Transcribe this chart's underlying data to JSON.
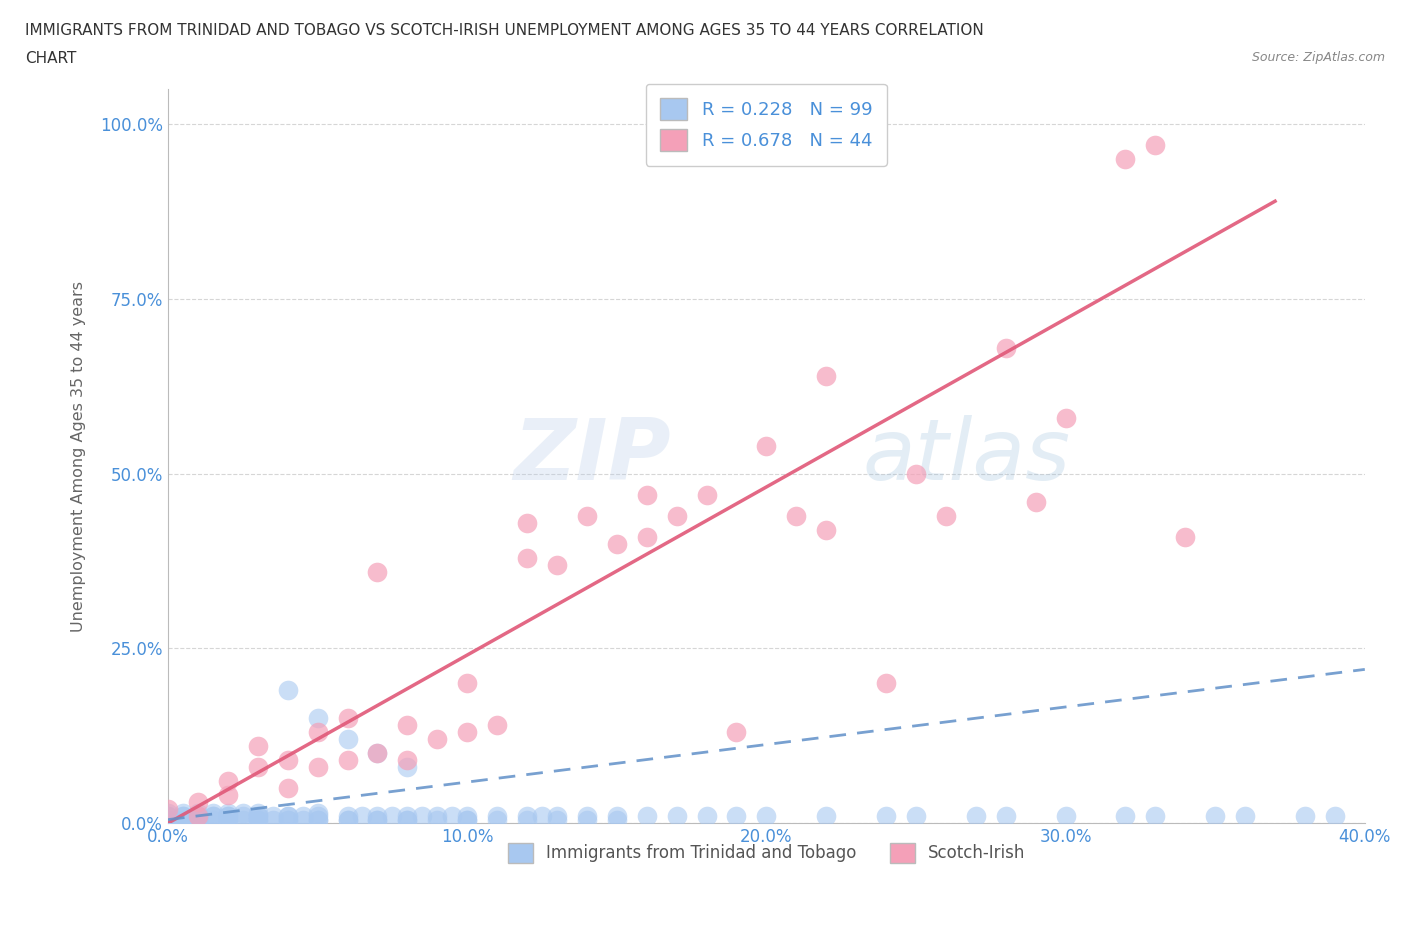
{
  "title_line1": "IMMIGRANTS FROM TRINIDAD AND TOBAGO VS SCOTCH-IRISH UNEMPLOYMENT AMONG AGES 35 TO 44 YEARS CORRELATION",
  "title_line2": "CHART",
  "source": "Source: ZipAtlas.com",
  "ylabel": "Unemployment Among Ages 35 to 44 years",
  "xlabel": "",
  "legend_label1": "Immigrants from Trinidad and Tobago",
  "legend_label2": "Scotch-Irish",
  "R1": 0.228,
  "N1": 99,
  "R2": 0.678,
  "N2": 44,
  "xlim": [
    0.0,
    0.4
  ],
  "ylim": [
    0.0,
    1.05
  ],
  "xticks": [
    0.0,
    0.1,
    0.2,
    0.3,
    0.4
  ],
  "yticks": [
    0.0,
    0.25,
    0.5,
    0.75,
    1.0
  ],
  "xtick_labels": [
    "0.0%",
    "10.0%",
    "20.0%",
    "30.0%",
    "40.0%"
  ],
  "ytick_labels": [
    "0.0%",
    "25.0%",
    "50.0%",
    "75.0%",
    "100.0%"
  ],
  "color1": "#a8c8f0",
  "color2": "#f4a0b8",
  "line_color1": "#6090c8",
  "line_color2": "#e05878",
  "watermark_color": "#c8ddf0",
  "background": "#ffffff",
  "grid_color": "#cccccc",
  "blue_x": [
    0.0,
    0.0,
    0.0,
    0.0,
    0.0,
    0.0,
    0.0,
    0.0,
    0.005,
    0.005,
    0.005,
    0.005,
    0.005,
    0.01,
    0.01,
    0.01,
    0.01,
    0.01,
    0.01,
    0.015,
    0.015,
    0.015,
    0.015,
    0.02,
    0.02,
    0.02,
    0.02,
    0.02,
    0.025,
    0.025,
    0.025,
    0.03,
    0.03,
    0.03,
    0.03,
    0.03,
    0.035,
    0.035,
    0.04,
    0.04,
    0.04,
    0.04,
    0.045,
    0.045,
    0.05,
    0.05,
    0.05,
    0.05,
    0.06,
    0.06,
    0.06,
    0.065,
    0.07,
    0.07,
    0.07,
    0.075,
    0.08,
    0.08,
    0.08,
    0.085,
    0.09,
    0.09,
    0.095,
    0.1,
    0.1,
    0.1,
    0.11,
    0.11,
    0.12,
    0.12,
    0.125,
    0.13,
    0.13,
    0.14,
    0.14,
    0.15,
    0.15,
    0.16,
    0.17,
    0.18,
    0.19,
    0.2,
    0.22,
    0.24,
    0.25,
    0.27,
    0.28,
    0.3,
    0.32,
    0.33,
    0.35,
    0.36,
    0.38,
    0.39,
    0.04,
    0.05,
    0.06,
    0.07,
    0.08
  ],
  "blue_y": [
    0.0,
    0.0,
    0.0,
    0.005,
    0.005,
    0.01,
    0.01,
    0.015,
    0.0,
    0.005,
    0.01,
    0.01,
    0.015,
    0.0,
    0.005,
    0.005,
    0.01,
    0.01,
    0.015,
    0.005,
    0.01,
    0.01,
    0.015,
    0.0,
    0.005,
    0.01,
    0.01,
    0.015,
    0.005,
    0.01,
    0.015,
    0.005,
    0.005,
    0.01,
    0.01,
    0.015,
    0.005,
    0.01,
    0.005,
    0.005,
    0.01,
    0.01,
    0.005,
    0.01,
    0.005,
    0.005,
    0.01,
    0.015,
    0.005,
    0.005,
    0.01,
    0.01,
    0.005,
    0.005,
    0.01,
    0.01,
    0.005,
    0.005,
    0.01,
    0.01,
    0.005,
    0.01,
    0.01,
    0.005,
    0.005,
    0.01,
    0.005,
    0.01,
    0.005,
    0.01,
    0.01,
    0.005,
    0.01,
    0.005,
    0.01,
    0.005,
    0.01,
    0.01,
    0.01,
    0.01,
    0.01,
    0.01,
    0.01,
    0.01,
    0.01,
    0.01,
    0.01,
    0.01,
    0.01,
    0.01,
    0.01,
    0.01,
    0.01,
    0.01,
    0.19,
    0.15,
    0.12,
    0.1,
    0.08
  ],
  "pink_x": [
    0.0,
    0.01,
    0.01,
    0.02,
    0.02,
    0.03,
    0.03,
    0.04,
    0.04,
    0.05,
    0.05,
    0.06,
    0.06,
    0.07,
    0.07,
    0.08,
    0.08,
    0.09,
    0.1,
    0.1,
    0.11,
    0.12,
    0.12,
    0.13,
    0.14,
    0.15,
    0.16,
    0.16,
    0.17,
    0.18,
    0.19,
    0.2,
    0.21,
    0.22,
    0.22,
    0.24,
    0.25,
    0.26,
    0.28,
    0.29,
    0.3,
    0.32,
    0.33,
    0.34
  ],
  "pink_y": [
    0.02,
    0.01,
    0.03,
    0.04,
    0.06,
    0.08,
    0.11,
    0.05,
    0.09,
    0.08,
    0.13,
    0.09,
    0.15,
    0.1,
    0.36,
    0.09,
    0.14,
    0.12,
    0.13,
    0.2,
    0.14,
    0.38,
    0.43,
    0.37,
    0.44,
    0.4,
    0.41,
    0.47,
    0.44,
    0.47,
    0.13,
    0.54,
    0.44,
    0.42,
    0.64,
    0.2,
    0.5,
    0.44,
    0.68,
    0.46,
    0.58,
    0.95,
    0.97,
    0.41
  ],
  "pink_line_x0": 0.0,
  "pink_line_y0": 0.0,
  "pink_line_x1": 0.37,
  "pink_line_y1": 0.89,
  "blue_line_x0": 0.0,
  "blue_line_y0": 0.005,
  "blue_line_x1": 0.4,
  "blue_line_y1": 0.22
}
